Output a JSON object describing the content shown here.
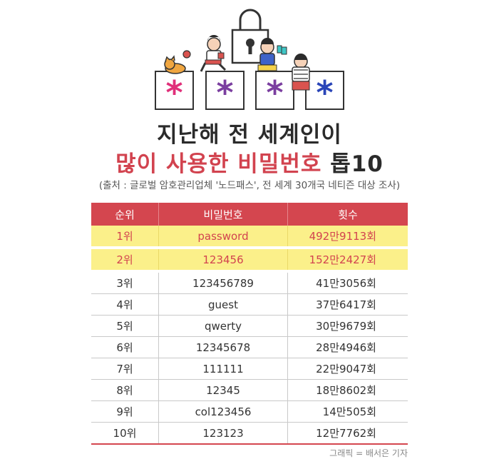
{
  "title": {
    "line1": "지난해 전 세계인이",
    "line2_red": "많이 사용한 비밀번호",
    "line2_dark": "톱10"
  },
  "source": "(출처 : 글로벌 암호관리업체 '노드패스', 전 세계 30개국 네티즌 대상 조사)",
  "table": {
    "headers": [
      "순위",
      "비밀번호",
      "횟수"
    ],
    "rows": [
      {
        "rank": "1위",
        "password": "password",
        "count": "492만9113회"
      },
      {
        "rank": "2위",
        "password": "123456",
        "count": "152만2427회"
      },
      {
        "rank": "3위",
        "password": "123456789",
        "count": "41만3056회"
      },
      {
        "rank": "4위",
        "password": "guest",
        "count": "37만6417회"
      },
      {
        "rank": "5위",
        "password": "qwerty",
        "count": "30만9679회"
      },
      {
        "rank": "6위",
        "password": "12345678",
        "count": "28만4946회"
      },
      {
        "rank": "7위",
        "password": "111111",
        "count": "22만9047회"
      },
      {
        "rank": "8위",
        "password": "12345",
        "count": "18만8602회"
      },
      {
        "rank": "9위",
        "password": "col123456",
        "count": "14만505회"
      },
      {
        "rank": "10위",
        "password": "123123",
        "count": "12만7762회"
      }
    ]
  },
  "credit": "그래픽 = 배서은 기자",
  "colors": {
    "accent_red": "#d4464f",
    "highlight_yellow": "#fbf08a",
    "asterisk_pink": "#e0307a",
    "asterisk_purple": "#7b3fa0",
    "asterisk_blue": "#2a45b8"
  }
}
